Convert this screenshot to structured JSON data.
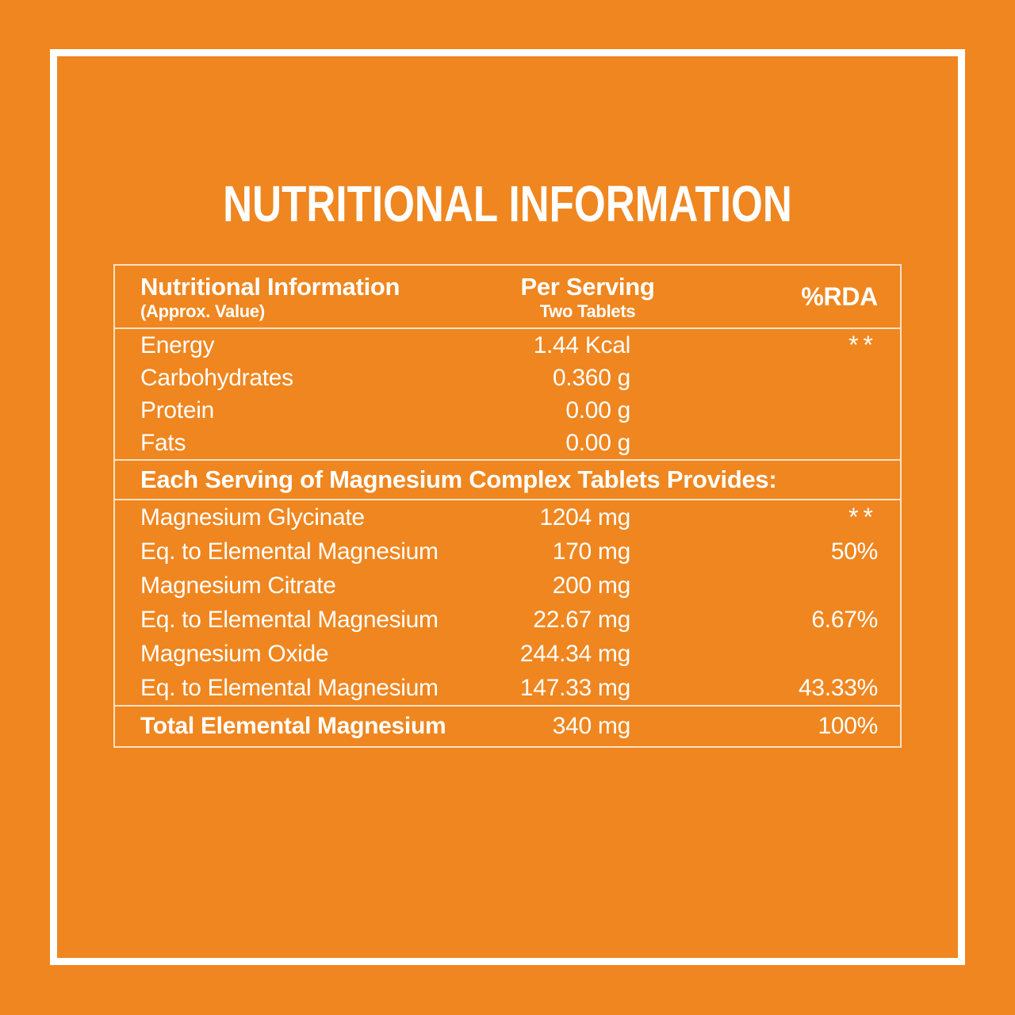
{
  "title": "NUTRITIONAL INFORMATION",
  "colors": {
    "background": "#EF861F",
    "text": "#FFFFFF",
    "table_line": "rgba(255,255,255,0.75)",
    "frame_border": "#FFFFFF"
  },
  "table": {
    "header": {
      "col1_title": "Nutritional Information",
      "col1_subtitle": "(Approx. Value)",
      "col2_title": "Per Serving",
      "col2_subtitle": "Two Tablets",
      "col3_title": "%RDA"
    },
    "sections": [
      {
        "heading": "",
        "rows": [
          {
            "name": "Energy",
            "value": "1.44 Kcal",
            "rda": "**"
          },
          {
            "name": "Carbohydrates",
            "value": "0.360 g",
            "rda": ""
          },
          {
            "name": "Protein",
            "value": "0.00 g",
            "rda": ""
          },
          {
            "name": "Fats",
            "value": "0.00 g",
            "rda": ""
          }
        ]
      },
      {
        "heading": "Each Serving of Magnesium Complex Tablets Provides:",
        "rows": [
          {
            "name": "Magnesium Glycinate",
            "value": "1204 mg",
            "rda": "**"
          },
          {
            "name": "Eq. to Elemental Magnesium",
            "value": "170 mg",
            "rda": "50%"
          },
          {
            "name": "Magnesium Citrate",
            "value": "200 mg",
            "rda": ""
          },
          {
            "name": "Eq. to Elemental Magnesium",
            "value": "22.67 mg",
            "rda": "6.67%"
          },
          {
            "name": "Magnesium Oxide",
            "value": "244.34 mg",
            "rda": ""
          },
          {
            "name": "Eq. to Elemental Magnesium",
            "value": "147.33 mg",
            "rda": "43.33%"
          }
        ]
      }
    ],
    "total": {
      "name": "Total Elemental Magnesium",
      "value": "340 mg",
      "rda": "100%"
    }
  }
}
